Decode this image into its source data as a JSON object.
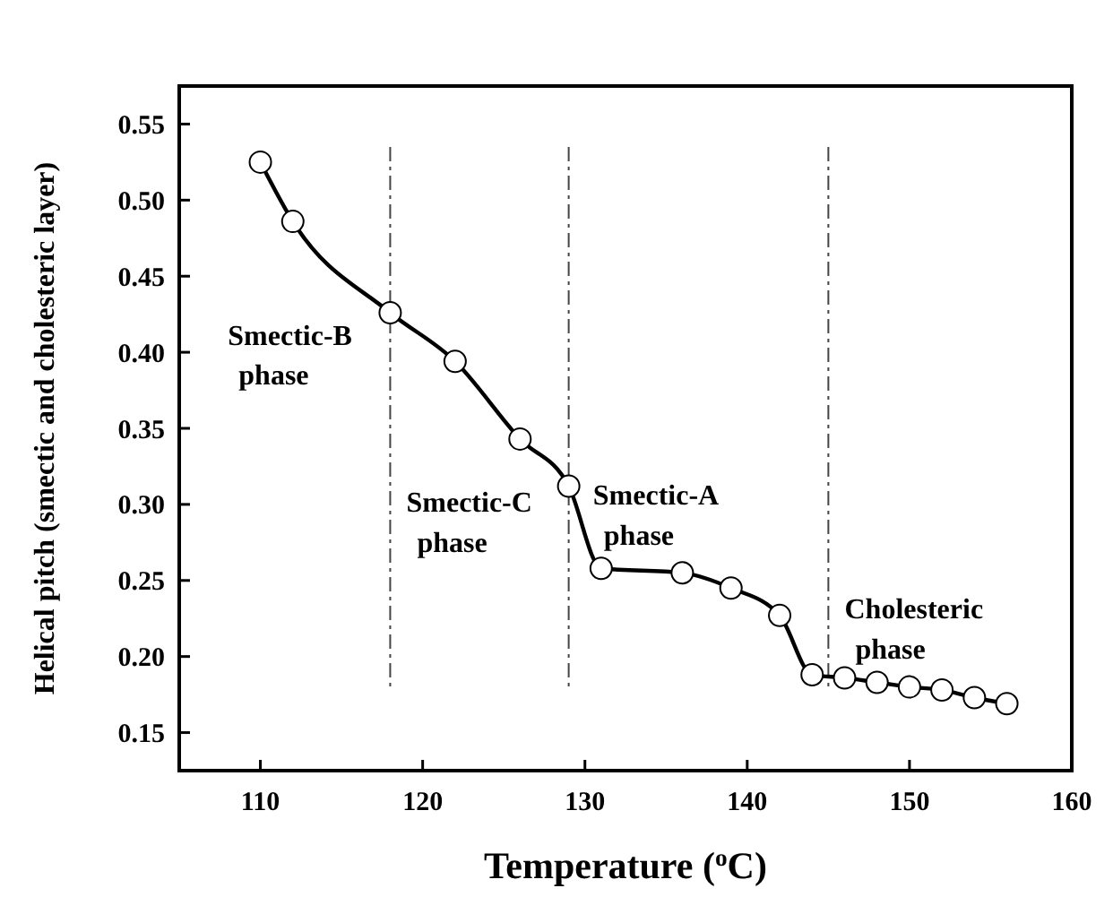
{
  "chart_data": {
    "type": "line",
    "xlabel": "Temperature ($^{o}$C)",
    "ylabel": "Helical pitch (smectic and cholesteric layer)",
    "x": [
      110,
      112,
      118,
      122,
      126,
      129,
      131,
      136,
      139,
      142,
      144,
      146,
      148,
      150,
      152,
      154,
      156
    ],
    "series": [
      {
        "color": "#000000",
        "values": [
          0.525,
          0.486,
          0.426,
          0.394,
          0.343,
          0.312,
          0.258,
          0.255,
          0.245,
          0.227,
          0.188,
          0.186,
          0.183,
          0.18,
          0.178,
          0.173,
          0.169
        ]
      }
    ],
    "xlim": [
      105,
      160
    ],
    "xticks": [
      110,
      120,
      130,
      140,
      150,
      160
    ],
    "ylim": [
      0.125,
      0.575
    ],
    "yticks": [
      {
        "value": 0.15,
        "label": "0.15"
      },
      {
        "value": 0.2,
        "label": "0.20"
      },
      {
        "value": 0.25,
        "label": "0.25"
      },
      {
        "value": 0.3,
        "label": "0.30"
      },
      {
        "value": 0.35,
        "label": "0.35"
      },
      {
        "value": 0.4,
        "label": "0.40"
      },
      {
        "value": 0.45,
        "label": "0.45"
      },
      {
        "value": 0.5,
        "label": "0.50"
      },
      {
        "value": 0.55,
        "label": "0.55"
      }
    ],
    "ref_lines": [
      {
        "axis": "x",
        "value": 118,
        "line_style": "dashdot"
      },
      {
        "axis": "x",
        "value": 129,
        "line_style": "dashdot"
      },
      {
        "axis": "x",
        "value": 145,
        "line_style": "dashdot"
      }
    ],
    "annotations": [
      "Smectic-B\nphase",
      "Smectic-C\nphase",
      "Smectic-A\nphase",
      "Cholesteric\nphase"
    ],
    "marker": "circle",
    "line_style": "solid",
    "grid": false
  }
}
